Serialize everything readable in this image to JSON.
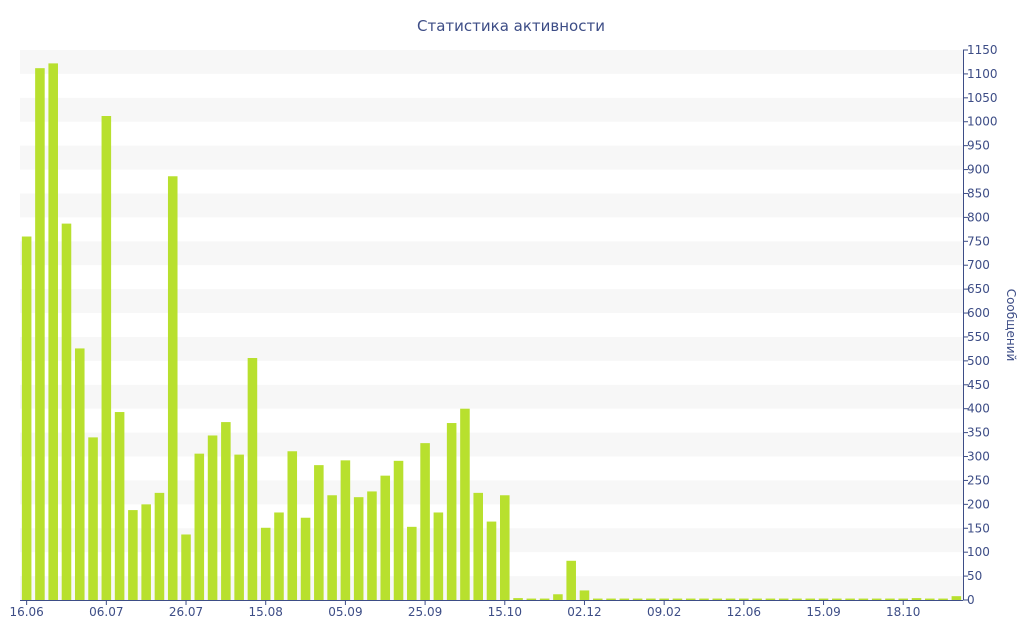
{
  "chart_data": {
    "type": "bar",
    "title": "Статистика активности",
    "ylabel": "Сообщений",
    "xlabel": "",
    "ylim": [
      0,
      1150
    ],
    "yticks": [
      0,
      50,
      100,
      150,
      200,
      250,
      300,
      350,
      400,
      450,
      500,
      550,
      600,
      650,
      700,
      750,
      800,
      850,
      900,
      950,
      1000,
      1050,
      1100,
      1150
    ],
    "y_axis_side": "right",
    "grid": "alternating horizontal bands",
    "xtick_labels": [
      {
        "label": "16.06",
        "index": 0
      },
      {
        "label": "06.07",
        "index": 6
      },
      {
        "label": "26.07",
        "index": 12
      },
      {
        "label": "15.08",
        "index": 18
      },
      {
        "label": "05.09",
        "index": 24
      },
      {
        "label": "25.09",
        "index": 30
      },
      {
        "label": "15.10",
        "index": 36
      },
      {
        "label": "02.12",
        "index": 42
      },
      {
        "label": "09.02",
        "index": 48
      },
      {
        "label": "12.06",
        "index": 54
      },
      {
        "label": "15.09",
        "index": 60
      },
      {
        "label": "18.10",
        "index": 66
      }
    ],
    "values": [
      760,
      1112,
      1122,
      787,
      526,
      340,
      1012,
      393,
      188,
      200,
      224,
      886,
      137,
      306,
      344,
      372,
      304,
      506,
      151,
      183,
      311,
      172,
      282,
      219,
      292,
      215,
      227,
      260,
      291,
      153,
      328,
      183,
      370,
      400,
      224,
      164,
      219,
      4,
      3,
      3,
      12,
      82,
      20,
      3,
      3,
      3,
      3,
      3,
      3,
      3,
      3,
      3,
      3,
      3,
      3,
      3,
      3,
      3,
      3,
      3,
      3,
      3,
      3,
      3,
      3,
      3,
      3,
      4,
      3,
      3,
      8
    ],
    "colors": {
      "bar": "#b8e02e",
      "band": "#f7f7f7",
      "text": "#3d4d86",
      "axis": "#3d4d86"
    }
  }
}
